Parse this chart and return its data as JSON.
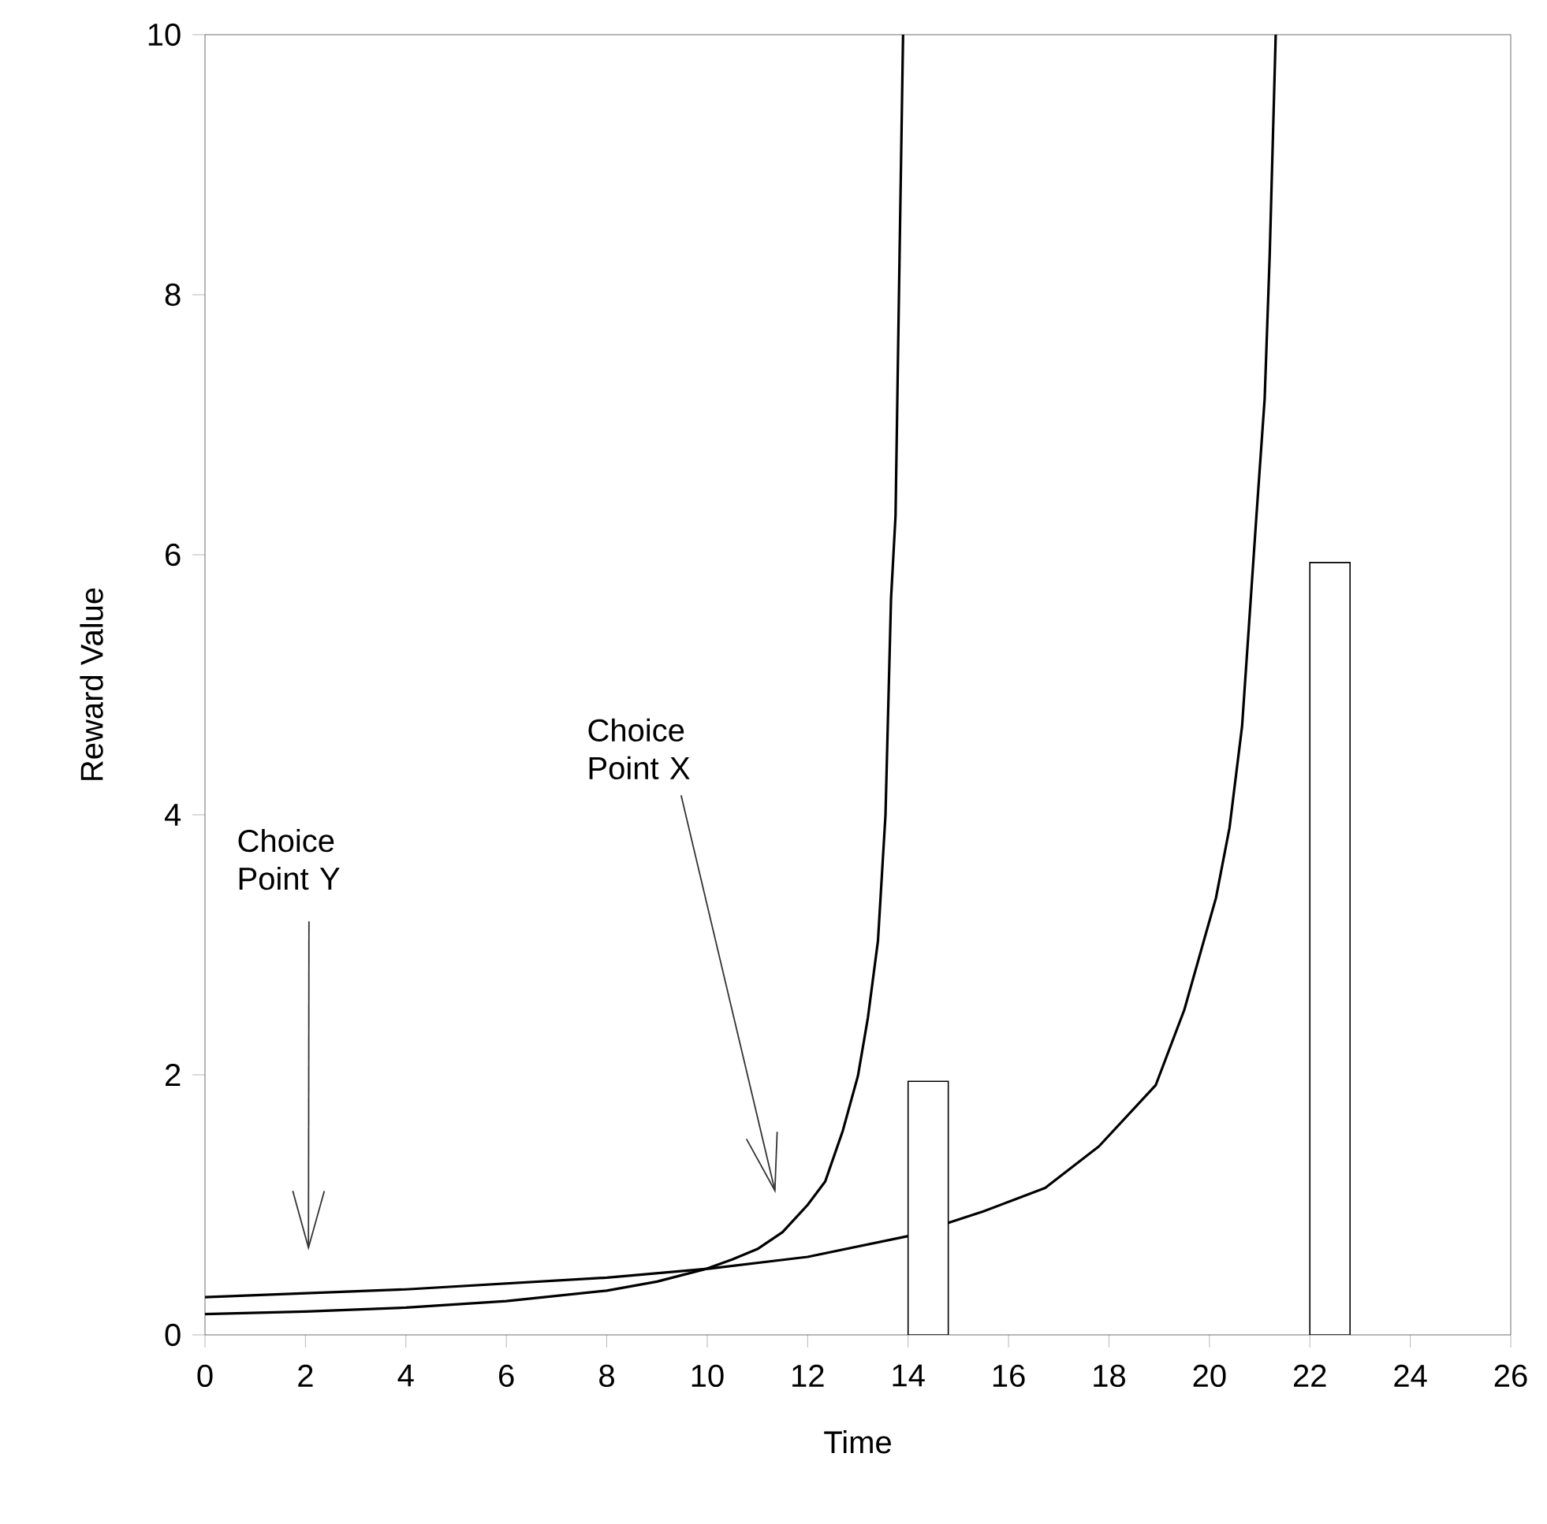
{
  "chart_data": {
    "type": "line",
    "xlabel": "Time",
    "ylabel": "Reward Value",
    "xlim": [
      0,
      26
    ],
    "ylim": [
      0,
      10
    ],
    "xticks": [
      0,
      2,
      4,
      6,
      8,
      10,
      12,
      14,
      16,
      18,
      20,
      22,
      24,
      26
    ],
    "yticks": [
      0,
      2,
      4,
      6,
      8,
      10
    ],
    "line_style": "solid",
    "series": [
      {
        "color": "#000000",
        "x": [
          0,
          2,
          4,
          6,
          8,
          9,
          10,
          10.5,
          11,
          11.5,
          12,
          12.35,
          12.7,
          13,
          13.2,
          13.4,
          13.55,
          13.66,
          13.75,
          13.83,
          13.9
        ],
        "values": [
          0.16,
          0.18,
          0.21,
          0.26,
          0.34,
          0.41,
          0.51,
          0.58,
          0.66,
          0.79,
          1.0,
          1.18,
          1.57,
          1.99,
          2.44,
          3.03,
          4.0,
          5.66,
          6.3,
          8.3,
          10
        ]
      },
      {
        "color": "#000000",
        "x": [
          0,
          4,
          8,
          10.05,
          12,
          14,
          15.5,
          16.73,
          17.8,
          18.93,
          19.5,
          20.13,
          20.4,
          20.65,
          20.94,
          21.1,
          21.2,
          21.32
        ],
        "values": [
          0.29,
          0.35,
          0.44,
          0.51,
          0.6,
          0.76,
          0.95,
          1.13,
          1.45,
          1.92,
          2.5,
          3.36,
          3.9,
          4.68,
          6.32,
          7.2,
          8.3,
          10
        ]
      },
      {
        "type": "bar",
        "color": "#ffffff",
        "x": [
          14.4,
          22.4
        ],
        "values": [
          1.95,
          5.94
        ]
      }
    ],
    "annotations": [
      "Choice Point Y",
      "Choice Point X"
    ]
  }
}
